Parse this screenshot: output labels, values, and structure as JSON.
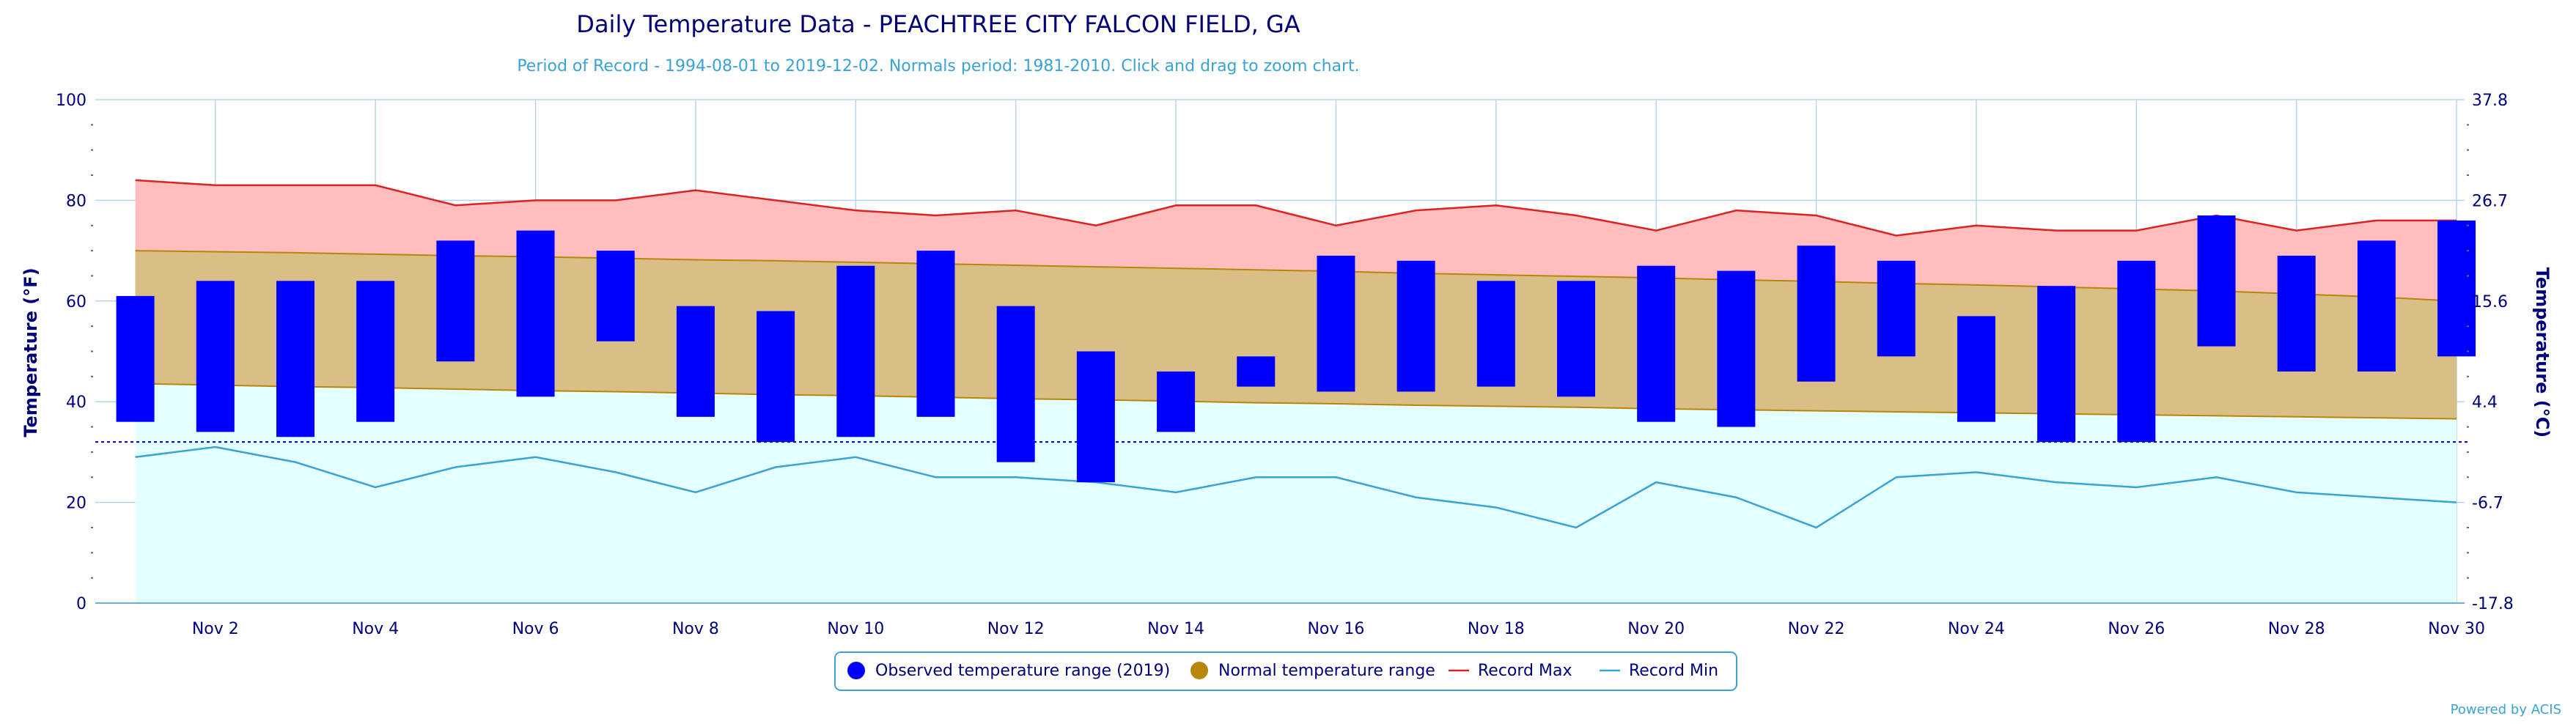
{
  "chart_data": {
    "type": "bar",
    "title": "Daily Temperature Data - PEACHTREE CITY FALCON FIELD, GA",
    "subtitle": "Period of Record - 1994-08-01 to 2019-12-02. Normals period: 1981-2010. Click and drag to zoom chart.",
    "ylabel": "Temperature (°F)",
    "ylabel_right": "Temperature (°C)",
    "ylim": [
      0,
      100
    ],
    "y_ticks": [
      "0",
      "20",
      "40",
      "60",
      "80",
      "100"
    ],
    "y_ticks_right": [
      "-17.8",
      "-6.7",
      "4.4",
      "15.6",
      "26.7",
      "37.8"
    ],
    "x_ticks": [
      "Nov 2",
      "Nov 4",
      "Nov 6",
      "Nov 8",
      "Nov 10",
      "Nov 12",
      "Nov 14",
      "Nov 16",
      "Nov 18",
      "Nov 20",
      "Nov 22",
      "Nov 24",
      "Nov 26",
      "Nov 28",
      "Nov 30"
    ],
    "days": [
      1,
      2,
      3,
      4,
      5,
      6,
      7,
      8,
      9,
      10,
      11,
      12,
      13,
      14,
      15,
      16,
      17,
      18,
      19,
      20,
      21,
      22,
      23,
      24,
      25,
      26,
      27,
      28,
      29,
      30
    ],
    "freezing_line": 32,
    "grid": true,
    "legend_position": "bottom",
    "series": [
      {
        "name": "Observed temperature range (2019)",
        "low": [
          36,
          34,
          33,
          36,
          48,
          41,
          52,
          37,
          32,
          33,
          37,
          28,
          24,
          34,
          43,
          42,
          42,
          43,
          41,
          36,
          35,
          44,
          49,
          36,
          32,
          32,
          51,
          46,
          46,
          49
        ],
        "high": [
          61,
          64,
          64,
          64,
          72,
          74,
          70,
          59,
          58,
          67,
          70,
          59,
          50,
          46,
          49,
          69,
          68,
          64,
          64,
          67,
          66,
          71,
          68,
          57,
          63,
          68,
          77,
          69,
          72,
          76
        ],
        "color": "#0000ff"
      },
      {
        "name": "Normal temperature range",
        "low": [
          43.6,
          43.3,
          43.0,
          42.8,
          42.5,
          42.2,
          42.0,
          41.7,
          41.4,
          41.2,
          40.9,
          40.6,
          40.4,
          40.1,
          39.8,
          39.6,
          39.3,
          39.1,
          38.9,
          38.6,
          38.4,
          38.2,
          38.0,
          37.8,
          37.6,
          37.4,
          37.2,
          37.0,
          36.8,
          36.6
        ],
        "high": [
          70.0,
          69.8,
          69.6,
          69.3,
          69.0,
          68.8,
          68.5,
          68.2,
          68.0,
          67.7,
          67.4,
          67.1,
          66.8,
          66.5,
          66.2,
          65.9,
          65.5,
          65.2,
          64.9,
          64.6,
          64.2,
          63.9,
          63.5,
          63.2,
          62.8,
          62.4,
          62.0,
          61.4,
          60.8,
          60.0
        ],
        "color": "#b8860b"
      },
      {
        "name": "Record Max",
        "values": [
          84,
          83,
          83,
          83,
          79,
          80,
          80,
          82,
          80,
          78,
          77,
          78,
          75,
          79,
          79,
          75,
          78,
          79,
          77,
          74,
          78,
          77,
          73,
          75,
          74,
          74,
          77,
          74,
          76,
          76
        ],
        "color": "#dd2222"
      },
      {
        "name": "Record Min",
        "values": [
          29,
          31,
          28,
          23,
          27,
          29,
          26,
          22,
          27,
          29,
          25,
          25,
          24,
          22,
          25,
          25,
          21,
          19,
          15,
          24,
          21,
          15,
          25,
          26,
          24,
          23,
          25,
          22,
          21,
          20
        ],
        "color": "#3aa2d4"
      }
    ],
    "credit": "Powered by ACIS"
  }
}
